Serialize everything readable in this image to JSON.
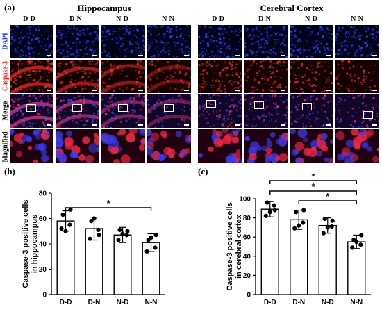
{
  "figure": {
    "panel_a": {
      "letter": "(a)",
      "left_title": "Hippocampus",
      "right_title": "Cerebral Cortex",
      "columns": [
        "D-D",
        "D-N",
        "N-D",
        "N-N"
      ],
      "rows": [
        {
          "label": "DAPI",
          "color": "#1f3fff"
        },
        {
          "label": "Caspase-3",
          "color": "#ff2020"
        },
        {
          "label": "Merge",
          "color": "#000000"
        },
        {
          "label": "Magnified",
          "color": "#000000"
        }
      ]
    },
    "panel_b": {
      "letter": "(b)"
    },
    "panel_c": {
      "letter": "(c)"
    }
  },
  "chart_data": [
    {
      "type": "bar",
      "categories": [
        "D-D",
        "D-N",
        "N-D",
        "N-N"
      ],
      "values": [
        58,
        52,
        47,
        41
      ],
      "errors": [
        8,
        9,
        6,
        7
      ],
      "points": [
        [
          52,
          55,
          63,
          67,
          50
        ],
        [
          44,
          51,
          58,
          47,
          60
        ],
        [
          43,
          47,
          51,
          50,
          48
        ],
        [
          34,
          37,
          43,
          47,
          45
        ]
      ],
      "ylabel": "Caspase-3 positive cells\nin hippocampus",
      "ylim": [
        0,
        80
      ],
      "yticks": [
        0,
        20,
        40,
        60,
        80
      ],
      "significance": [
        {
          "from": "D-D",
          "to": "N-N",
          "label": "*"
        }
      ],
      "bar_color": "#ffffff",
      "edge_color": "#000000"
    },
    {
      "type": "bar",
      "categories": [
        "D-D",
        "D-N",
        "N-D",
        "N-N"
      ],
      "values": [
        89,
        78,
        72,
        55
      ],
      "errors": [
        8,
        10,
        8,
        7
      ],
      "points": [
        [
          82,
          93,
          96,
          88,
          86
        ],
        [
          69,
          75,
          86,
          88,
          72
        ],
        [
          64,
          71,
          79,
          77,
          70
        ],
        [
          49,
          52,
          57,
          62,
          55
        ]
      ],
      "ylabel": "Caspase-3 positive cells\nin cerebral cortex",
      "ylim": [
        0,
        100
      ],
      "yticks": [
        0,
        20,
        40,
        60,
        80,
        100
      ],
      "significance": [
        {
          "from": "D-D",
          "to": "N-N",
          "label": "*"
        },
        {
          "from": "D-D",
          "to": "N-N",
          "label": "*"
        },
        {
          "from": "D-N",
          "to": "N-N",
          "label": "*"
        }
      ],
      "bar_color": "#ffffff",
      "edge_color": "#000000"
    }
  ]
}
